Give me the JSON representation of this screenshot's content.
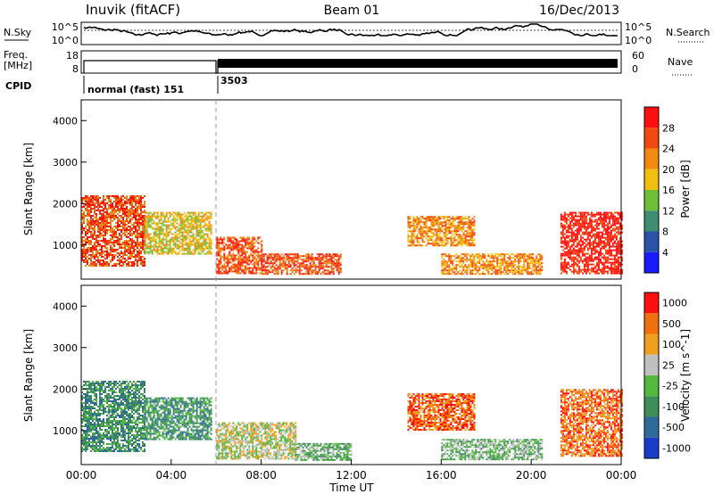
{
  "header": {
    "station": "Inuvik (fitACF)",
    "beam": "Beam 01",
    "date": "16/Dec/2013"
  },
  "noise_panel": {
    "left_label": "N.Sky",
    "right_label": "N.Search",
    "left_ticks": [
      "10^5",
      "10^0"
    ],
    "right_ticks": [
      "10^5",
      "10^0"
    ]
  },
  "freq_panel": {
    "left_label_line1": "Freq.",
    "left_label_line2": "[MHz]",
    "right_label": "Nave",
    "left_ticks": [
      "18",
      "8"
    ],
    "right_ticks": [
      "60",
      "0"
    ]
  },
  "cpid": {
    "label": "CPID",
    "entries": [
      {
        "text": "normal (fast) 151",
        "start_hour": 0.0
      },
      {
        "text": "3503",
        "start_hour": 6.05
      }
    ]
  },
  "x_axis": {
    "label": "Time UT",
    "ticks": [
      "00:00",
      "04:00",
      "08:00",
      "12:00",
      "16:00",
      "20:00",
      "00:00"
    ]
  },
  "chart_data": [
    {
      "type": "heatmap",
      "name": "power",
      "ylabel": "Slant Range [km]",
      "y_ticks": [
        "1000",
        "2000",
        "3000",
        "4000"
      ],
      "xlim_hours": [
        0,
        24
      ],
      "ylim_km": [
        180,
        4500
      ],
      "colorbar": {
        "label": "Power [dB]",
        "ticks": [
          "4",
          "8",
          "12",
          "16",
          "20",
          "24",
          "28"
        ],
        "colors": [
          "#1a1aff",
          "#2a53a8",
          "#3f8e74",
          "#6fbf3b",
          "#f0c010",
          "#f08a10",
          "#f04a10",
          "#ff1010"
        ]
      },
      "echo_regions": [
        {
          "t0": 0.0,
          "t1": 2.8,
          "r0": 500,
          "r1": 2200,
          "level": 6
        },
        {
          "t0": 2.8,
          "t1": 5.8,
          "r0": 800,
          "r1": 1800,
          "level": 4
        },
        {
          "t0": 6.0,
          "t1": 8.0,
          "r0": 300,
          "r1": 1200,
          "level": 6
        },
        {
          "t0": 8.0,
          "t1": 11.5,
          "r0": 300,
          "r1": 800,
          "level": 6
        },
        {
          "t0": 14.5,
          "t1": 17.5,
          "r0": 1000,
          "r1": 1700,
          "level": 5
        },
        {
          "t0": 16.0,
          "t1": 20.5,
          "r0": 300,
          "r1": 800,
          "level": 5
        },
        {
          "t0": 21.3,
          "t1": 24.0,
          "r0": 300,
          "r1": 1800,
          "level": 7
        }
      ]
    },
    {
      "type": "heatmap",
      "name": "velocity",
      "ylabel": "Slant Range [km]",
      "y_ticks": [
        "1000",
        "2000",
        "3000",
        "4000"
      ],
      "xlim_hours": [
        0,
        24
      ],
      "ylim_km": [
        180,
        4500
      ],
      "colorbar": {
        "label": "Velocity [m s^-1]",
        "ticks": [
          "1000",
          "500",
          "100",
          "25",
          "-25",
          "-100",
          "-500",
          "-1000"
        ],
        "colors": [
          "#1a3cc8",
          "#2f6b9a",
          "#3f8e5a",
          "#55b840",
          "#c0c0c0",
          "#f0a020",
          "#f07010",
          "#ff1010"
        ]
      },
      "echo_regions": [
        {
          "t0": 0.0,
          "t1": 2.8,
          "r0": 500,
          "r1": 2200,
          "level": 2
        },
        {
          "t0": 2.8,
          "t1": 5.8,
          "r0": 800,
          "r1": 1800,
          "level": 2
        },
        {
          "t0": 6.0,
          "t1": 9.5,
          "r0": 300,
          "r1": 1200,
          "level": 4
        },
        {
          "t0": 9.5,
          "t1": 12.0,
          "r0": 300,
          "r1": 700,
          "level": 3
        },
        {
          "t0": 14.5,
          "t1": 17.5,
          "r0": 1000,
          "r1": 1900,
          "level": 6
        },
        {
          "t0": 16.0,
          "t1": 20.5,
          "r0": 300,
          "r1": 800,
          "level": 3
        },
        {
          "t0": 21.3,
          "t1": 24.0,
          "r0": 400,
          "r1": 2000,
          "level": 6
        }
      ]
    }
  ]
}
